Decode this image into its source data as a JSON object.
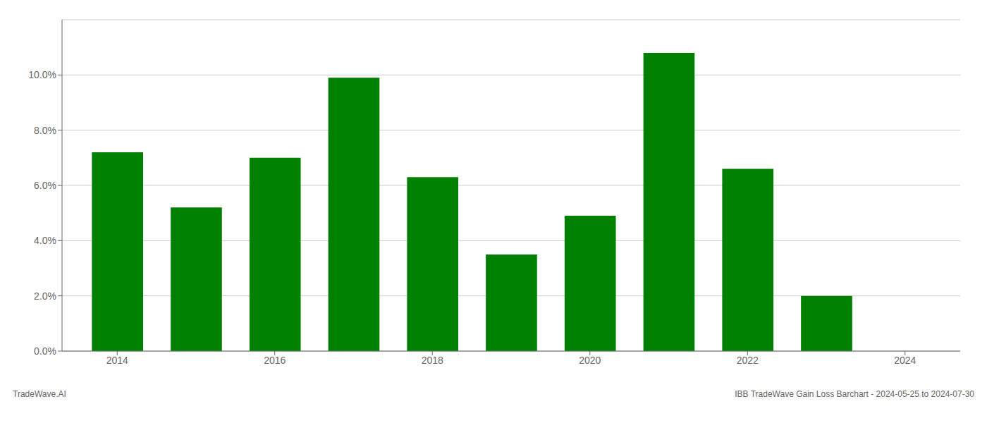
{
  "chart_data": {
    "type": "bar",
    "x": [
      2014,
      2015,
      2016,
      2017,
      2018,
      2019,
      2020,
      2021,
      2022,
      2023,
      2024
    ],
    "values": [
      0.072,
      0.052,
      0.07,
      0.099,
      0.063,
      0.035,
      0.049,
      0.108,
      0.066,
      0.02,
      0.0
    ],
    "color": "#008000",
    "xlim": [
      2013.3,
      2024.7
    ],
    "xticks": [
      2014,
      2016,
      2018,
      2020,
      2022,
      2024
    ],
    "ylim": [
      0,
      0.12
    ],
    "yticks": [
      {
        "value": 0.0,
        "label": "0.0%"
      },
      {
        "value": 0.02,
        "label": "2.0%"
      },
      {
        "value": 0.04,
        "label": "4.0%"
      },
      {
        "value": 0.06,
        "label": "6.0%"
      },
      {
        "value": 0.08,
        "label": "8.0%"
      },
      {
        "value": 0.1,
        "label": "10.0%"
      }
    ],
    "grid": true,
    "annotations": [
      "TradeWave.AI",
      "IBB TradeWave Gain Loss Barchart - 2024-05-25 to 2024-07-30"
    ]
  }
}
